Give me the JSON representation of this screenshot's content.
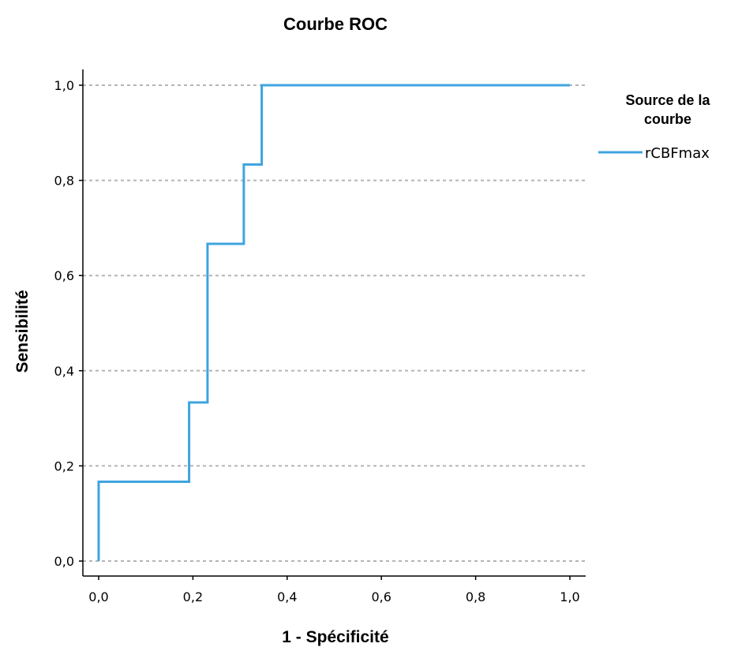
{
  "chart_data": {
    "type": "line",
    "title": "Courbe ROC",
    "xlabel": "1 - Spécificité",
    "ylabel": "Sensibilité",
    "xlim": [
      0,
      1
    ],
    "ylim": [
      0,
      1
    ],
    "x_ticks": [
      "0,0",
      "0,2",
      "0,4",
      "0,6",
      "0,8",
      "1,0"
    ],
    "y_ticks": [
      "0,0",
      "0,2",
      "0,4",
      "0,6",
      "0,8",
      "1,0"
    ],
    "grid": "horizontal dashed",
    "legend": {
      "title_line1": "Source de la",
      "title_line2": "courbe",
      "placement": "right"
    },
    "series": [
      {
        "name": "rCBFmax",
        "color": "#3FA4E0",
        "points": [
          [
            0.0,
            0.0
          ],
          [
            0.0,
            0.1667
          ],
          [
            0.192,
            0.1667
          ],
          [
            0.192,
            0.3333
          ],
          [
            0.231,
            0.3333
          ],
          [
            0.231,
            0.6667
          ],
          [
            0.308,
            0.6667
          ],
          [
            0.308,
            0.8333
          ],
          [
            0.346,
            0.8333
          ],
          [
            0.346,
            1.0
          ],
          [
            1.0,
            1.0
          ]
        ]
      }
    ]
  }
}
